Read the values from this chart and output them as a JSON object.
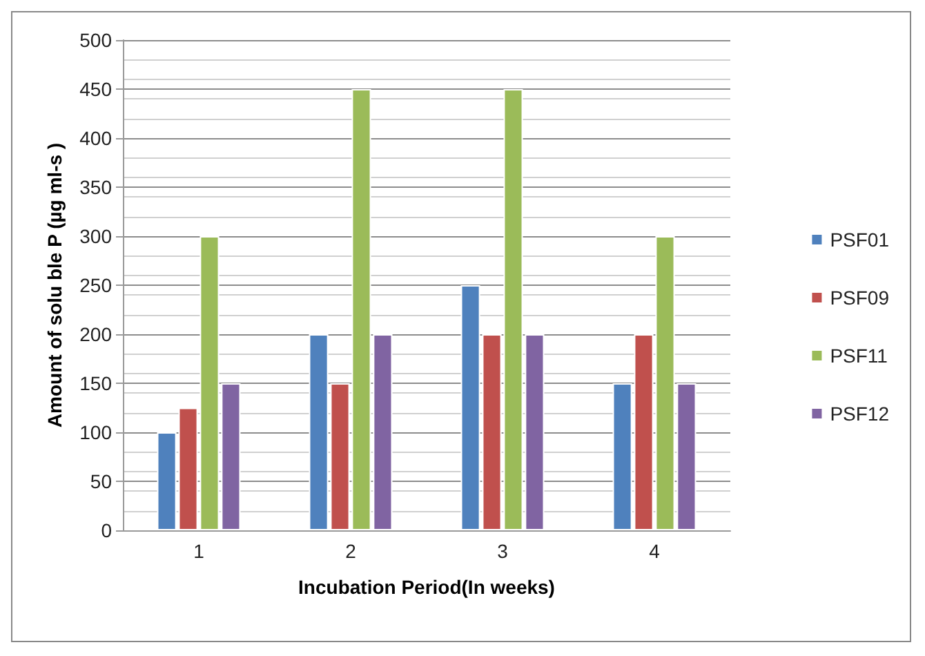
{
  "chart_data": {
    "type": "bar",
    "xlabel": "Incubation Period(In weeks)",
    "ylabel": "Amount of solu ble P (µg ml-s )",
    "categories": [
      "1",
      "2",
      "3",
      "4"
    ],
    "series": [
      {
        "name": "PSF01",
        "color": "#4f81bd",
        "values": [
          100,
          200,
          250,
          150
        ]
      },
      {
        "name": "PSF09",
        "color": "#c0504d",
        "values": [
          125,
          150,
          200,
          200
        ]
      },
      {
        "name": "PSF11",
        "color": "#9bbb59",
        "values": [
          300,
          450,
          450,
          300
        ]
      },
      {
        "name": "PSF12",
        "color": "#8064a2",
        "values": [
          150,
          200,
          200,
          150
        ]
      }
    ],
    "ylim": [
      0,
      500
    ],
    "yticks": [
      0,
      50,
      100,
      150,
      200,
      250,
      300,
      350,
      400,
      450,
      500
    ],
    "grid": "y",
    "legend": "right"
  }
}
